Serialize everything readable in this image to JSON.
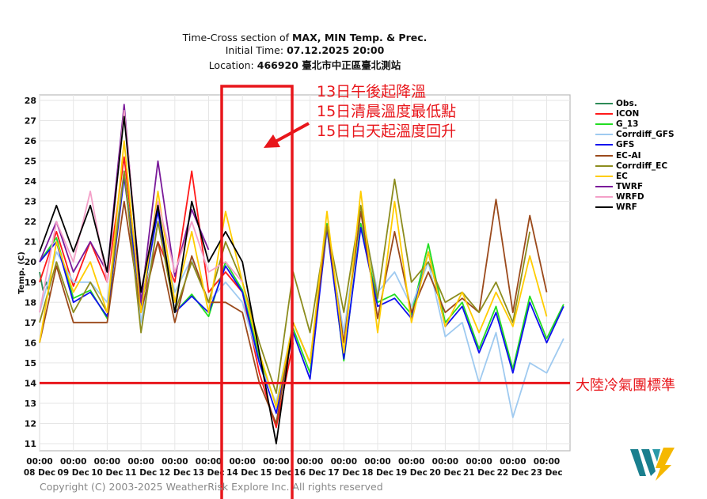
{
  "title": {
    "line1_prefix": "Time-Cross section of ",
    "line1_bold": "MAX, MIN Temp. & Prec.",
    "line2_prefix": "Initial Time: ",
    "line2_bold": "07.12.2025 20:00",
    "line3_prefix": "Location: ",
    "line3_bold": "466920 臺北市中正區臺北測站"
  },
  "annotations": {
    "line1": "13日午後起降溫",
    "line2": "15日清晨溫度最低點",
    "line3": "15日白天起溫度回升",
    "threshold_label": "大陸冷氣團標準",
    "threshold_value": 14,
    "highlight_range_days": [
      "14 Dec",
      "15 Dec"
    ],
    "color": "#e8161b"
  },
  "copyright": "Copyright (C) 2003-2025 WeatherRisk Explore Inc. All rights reserved",
  "logo_text": "WeatherRisk",
  "chart_data": {
    "type": "line",
    "ylabel": "Temp. (C)",
    "xlabel": "",
    "ylim": [
      11,
      28
    ],
    "yticks": [
      11,
      12,
      13,
      14,
      15,
      16,
      17,
      18,
      19,
      20,
      21,
      22,
      23,
      24,
      25,
      26,
      27,
      28
    ],
    "xticks": [
      "08 Dec",
      "09 Dec",
      "10 Dec",
      "11 Dec",
      "12 Dec",
      "13 Dec",
      "14 Dec",
      "15 Dec",
      "16 Dec",
      "17 Dec",
      "18 Dec",
      "19 Dec",
      "20 Dec",
      "21 Dec",
      "22 Dec",
      "23 Dec"
    ],
    "xtick_time": "00:00",
    "x_unit": "days since 08 Dec 00:00",
    "xlim": [
      0,
      15.7
    ],
    "grid": true,
    "legend_position": "right",
    "series": [
      {
        "name": "Obs.",
        "color": "#2e8b57",
        "start": 0,
        "step": 0.1,
        "values": [
          19.5,
          18.6,
          19,
          18.3
        ]
      },
      {
        "name": "ICON",
        "color": "#ff1a1a",
        "start": 0,
        "step": 0.5,
        "values": [
          19,
          21.5,
          18.8,
          21,
          19,
          25.2,
          18,
          21,
          19,
          24.5,
          18.5,
          19.5,
          18.5,
          14.5,
          11.8,
          16
        ]
      },
      {
        "name": "G_13",
        "color": "#22dd22",
        "start": 0,
        "step": 0.5,
        "values": [
          20,
          21.2,
          18.2,
          18.6,
          17.2,
          24.5,
          17.6,
          22.7,
          17.5,
          18.4,
          17.3,
          20,
          18.6,
          15.3,
          12.9,
          16.7,
          14.5,
          21.9,
          15.1,
          21.9,
          18,
          18.4,
          17.4,
          20.9,
          17,
          18,
          15.7,
          17.8,
          14.7,
          18.3,
          16.2,
          17.9
        ]
      },
      {
        "name": "Corrdiff_GFS",
        "color": "#9fcaf0",
        "start": 0,
        "step": 0.5,
        "values": [
          17.5,
          20.5,
          19,
          19,
          18,
          24.5,
          17,
          22,
          18.5,
          20.2,
          18,
          19,
          18,
          15,
          13,
          17,
          15,
          21.5,
          16.5,
          22.5,
          18.5,
          19.5,
          17.8,
          20,
          16.3,
          17,
          14,
          16.5,
          12.3,
          15,
          14.5,
          16.2
        ]
      },
      {
        "name": "GFS",
        "color": "#1010ee",
        "start": 0,
        "step": 0.5,
        "values": [
          20,
          21,
          18,
          18.5,
          17.3,
          24.2,
          17.8,
          22.5,
          17.5,
          18.3,
          17.5,
          19.8,
          18.5,
          15,
          12.5,
          16.5,
          14.2,
          21.7,
          15.2,
          21.7,
          17.8,
          18.2,
          17.2,
          20.5,
          16.8,
          17.8,
          15.5,
          17.5,
          14.5,
          18,
          16,
          17.8
        ]
      },
      {
        "name": "EC-AI",
        "color": "#9b4a1c",
        "start": 0,
        "step": 0.5,
        "values": [
          16,
          19.8,
          17,
          17,
          17,
          23,
          17.5,
          21,
          17,
          20.3,
          18,
          18,
          17.5,
          14,
          12,
          17,
          15,
          21.8,
          16,
          22.5,
          17.2,
          21.5,
          17.5,
          19.5,
          17.5,
          18.2,
          17.5,
          23.1,
          17.5,
          22.3,
          18.5
        ]
      },
      {
        "name": "Corrdiff_EC",
        "color": "#8c8c1e",
        "start": 0,
        "step": 0.5,
        "values": [
          17,
          20,
          17.5,
          19,
          17.5,
          24.5,
          16.5,
          22,
          17.5,
          20,
          18,
          21,
          19,
          16,
          13.5,
          19.5,
          16.5,
          21.8,
          17.5,
          22.8,
          18.2,
          24.1,
          19,
          20,
          18,
          18.5,
          17.5,
          19,
          17,
          21.5
        ]
      },
      {
        "name": "EC",
        "color": "#ffcc00",
        "start": 0,
        "step": 0.5,
        "values": [
          16,
          21,
          18.5,
          20,
          17.5,
          26,
          17.5,
          23.5,
          18,
          21.5,
          17.5,
          22.5,
          19,
          15.5,
          12.8,
          17,
          15,
          22.5,
          15.5,
          23.5,
          16.5,
          23,
          17,
          20.5,
          16.8,
          18.5,
          16.5,
          18.5,
          16.8,
          20.3,
          17.3
        ]
      },
      {
        "name": "TWRF",
        "color": "#7a1a9a",
        "start": 0,
        "step": 0.5,
        "values": [
          20,
          22,
          19.5,
          21,
          19.5,
          27.8,
          18,
          25,
          19.3,
          22.6,
          20.6
        ]
      },
      {
        "name": "WRFD",
        "color": "#f4a0c8",
        "start": 0,
        "step": 0.5,
        "values": [
          17.5,
          22,
          20,
          23.5,
          19,
          27.5,
          18.5,
          23,
          19.5,
          22,
          19.5,
          20,
          19
        ]
      },
      {
        "name": "WRF",
        "color": "#000000",
        "start": 0,
        "step": 0.5,
        "values": [
          20.5,
          22.8,
          20.5,
          22.8,
          19.5,
          27.2,
          18.5,
          22.8,
          17.5,
          23,
          20,
          21.5,
          20,
          15.5,
          11,
          17
        ]
      }
    ]
  }
}
